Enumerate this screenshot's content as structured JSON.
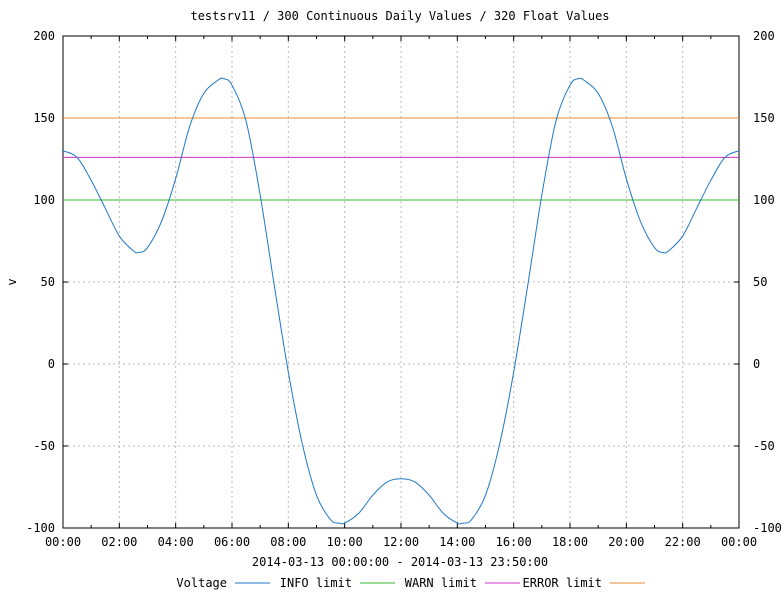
{
  "chart_data": {
    "type": "line",
    "title": "testsrv11 / 300 Continuous Daily Values / 320 Float Values",
    "xlabel": "2014-03-13 00:00:00 - 2014-03-13 23:50:00",
    "ylabel": "v",
    "xlim_hours": [
      0,
      24
    ],
    "ylim": [
      -100,
      200
    ],
    "x_ticks": [
      "00:00",
      "02:00",
      "04:00",
      "06:00",
      "08:00",
      "10:00",
      "12:00",
      "14:00",
      "16:00",
      "18:00",
      "20:00",
      "22:00",
      "00:00"
    ],
    "y_ticks": [
      -100,
      -50,
      0,
      50,
      100,
      150,
      200
    ],
    "grid": true,
    "legend_position": "bottom",
    "series": [
      {
        "name": "Voltage",
        "color": "#1f78c8",
        "x_hours": [
          0,
          0.5,
          1,
          1.5,
          2,
          2.5,
          2.7,
          3,
          3.5,
          4,
          4.5,
          5,
          5.5,
          5.7,
          6,
          6.5,
          7,
          7.5,
          8,
          8.5,
          9,
          9.5,
          9.8,
          10,
          10.5,
          11,
          11.5,
          12,
          12.5,
          13,
          13.5,
          14,
          14.2,
          14.5,
          15,
          15.5,
          16,
          16.5,
          17,
          17.5,
          18,
          18.3,
          18.5,
          19,
          19.5,
          20,
          20.5,
          21,
          21.3,
          21.5,
          22,
          22.5,
          23,
          23.5,
          24
        ],
        "values": [
          130,
          126,
          112,
          95,
          78,
          69,
          68,
          71,
          87,
          113,
          145,
          165,
          173,
          174,
          170,
          148,
          103,
          48,
          -5,
          -49,
          -80,
          -95,
          -97,
          -97,
          -91,
          -80,
          -72,
          -70,
          -72,
          -80,
          -91,
          -97,
          -97,
          -95,
          -80,
          -49,
          -5,
          48,
          103,
          148,
          170,
          174,
          173,
          165,
          145,
          113,
          87,
          71,
          68,
          69,
          78,
          95,
          112,
          126,
          130
        ]
      },
      {
        "name": "INFO limit",
        "color": "#33bb33",
        "values": [
          100,
          100
        ]
      },
      {
        "name": "WARN limit",
        "color": "#cc33cc",
        "values": [
          126,
          126
        ]
      },
      {
        "name": "ERROR limit",
        "color": "#ee8833",
        "values": [
          150,
          150
        ]
      }
    ]
  }
}
